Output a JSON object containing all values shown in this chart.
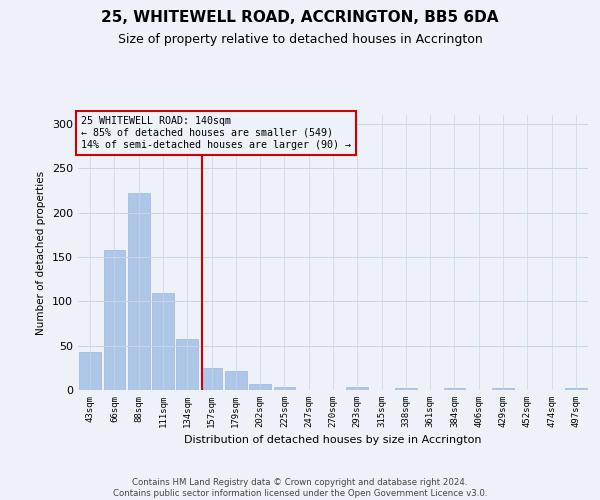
{
  "title": "25, WHITEWELL ROAD, ACCRINGTON, BB5 6DA",
  "subtitle": "Size of property relative to detached houses in Accrington",
  "xlabel": "Distribution of detached houses by size in Accrington",
  "ylabel": "Number of detached properties",
  "footer_line1": "Contains HM Land Registry data © Crown copyright and database right 2024.",
  "footer_line2": "Contains public sector information licensed under the Open Government Licence v3.0.",
  "annotation_line1": "25 WHITEWELL ROAD: 140sqm",
  "annotation_line2": "← 85% of detached houses are smaller (549)",
  "annotation_line3": "14% of semi-detached houses are larger (90) →",
  "bar_labels": [
    "43sqm",
    "66sqm",
    "88sqm",
    "111sqm",
    "134sqm",
    "157sqm",
    "179sqm",
    "202sqm",
    "225sqm",
    "247sqm",
    "270sqm",
    "293sqm",
    "315sqm",
    "338sqm",
    "361sqm",
    "384sqm",
    "406sqm",
    "429sqm",
    "452sqm",
    "474sqm",
    "497sqm"
  ],
  "bar_values": [
    43,
    158,
    222,
    109,
    57,
    25,
    21,
    7,
    3,
    0,
    0,
    3,
    0,
    2,
    0,
    2,
    0,
    2,
    0,
    0,
    2
  ],
  "bar_color": "#aec6e8",
  "bar_edge_color": "#9ab8d8",
  "grid_color": "#c8d4e8",
  "background_color": "#eef2f8",
  "vline_x": 4.62,
  "vline_color": "#cc0000",
  "annotation_box_color": "#cc0000",
  "ylim": [
    0,
    310
  ],
  "yticks": [
    0,
    50,
    100,
    150,
    200,
    250,
    300
  ],
  "title_fontsize": 11,
  "subtitle_fontsize": 9
}
